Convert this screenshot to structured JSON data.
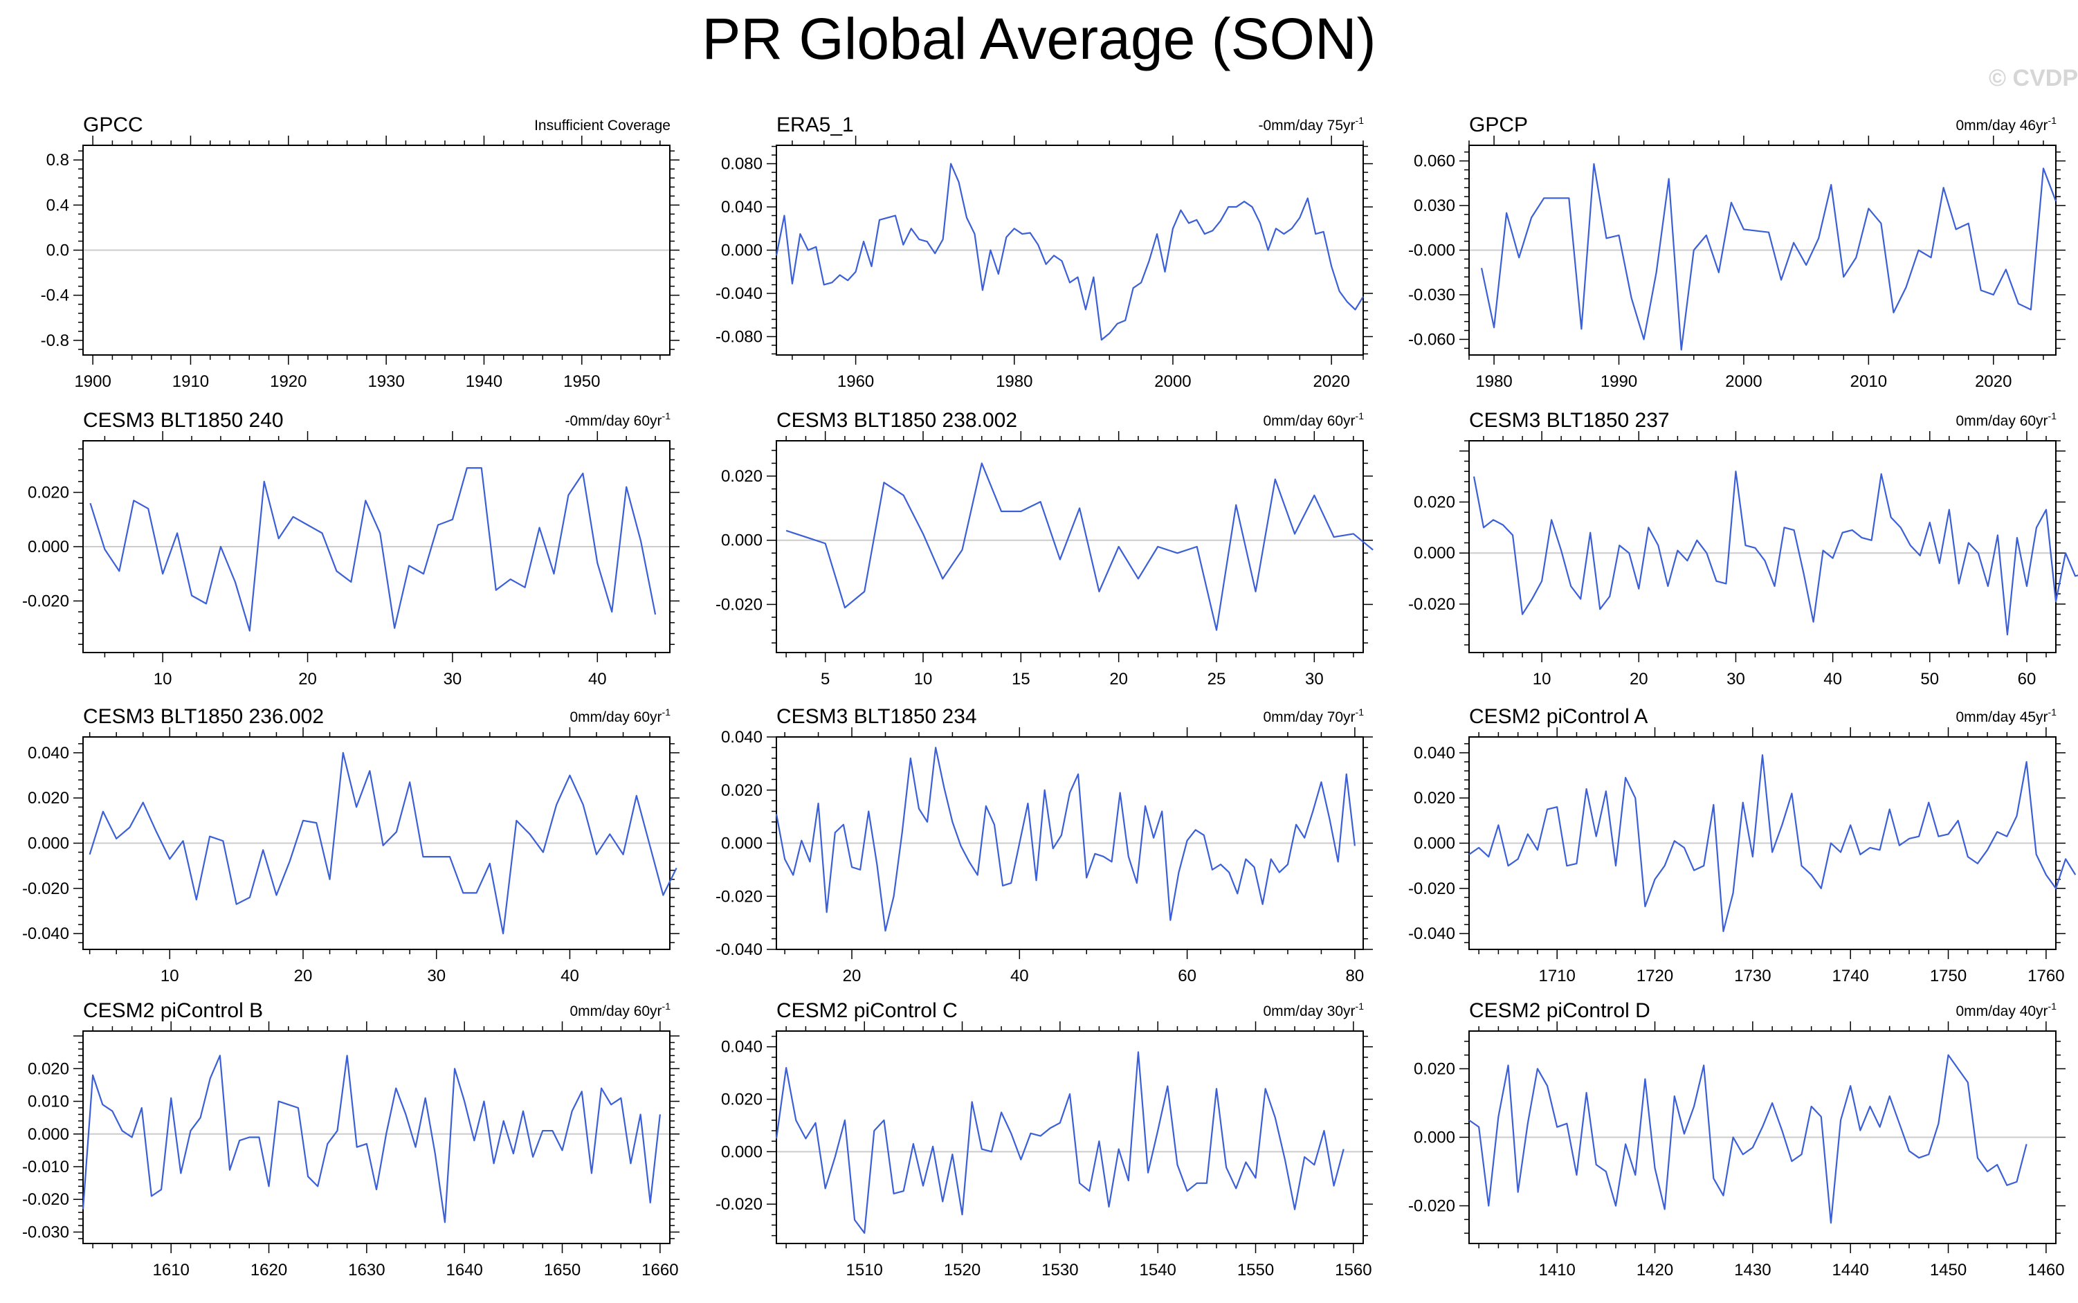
{
  "title": "PR Global Average (SON)",
  "watermark": "© CVDP",
  "colors": {
    "line": "#3b5fd6",
    "zero": "#cccccc",
    "axis": "#000000",
    "text": "#000000"
  },
  "chart_data": [
    {
      "type": "line",
      "title": "GPCC",
      "subtitle": "Insufficient Coverage",
      "xlim": [
        1899,
        1959
      ],
      "ylim": [
        -0.93,
        0.93
      ],
      "xticks": [
        1900,
        1910,
        1920,
        1930,
        1940,
        1950
      ],
      "yticks": [
        0.8,
        0.4,
        0.0,
        -0.4,
        -0.8
      ],
      "ytick_labels": [
        "0.8",
        "0.4",
        "0.0",
        "-0.4",
        "-0.8"
      ],
      "x_start": 1900,
      "values": []
    },
    {
      "type": "line",
      "title": "ERA5_1",
      "subtitle": "-0mm/day 75yr",
      "subtitle_sup": "-1",
      "xlim": [
        1950,
        2024
      ],
      "ylim": [
        -0.097,
        0.097
      ],
      "xticks": [
        1960,
        1980,
        2000,
        2020
      ],
      "yticks": [
        0.08,
        0.04,
        0.0,
        -0.04,
        -0.08
      ],
      "ytick_labels": [
        "0.080",
        "0.040",
        "0.000",
        "-0.040",
        "-0.080"
      ],
      "x_start": 1950,
      "values": [
        -0.005,
        0.032,
        -0.031,
        0.015,
        0.0,
        0.003,
        -0.032,
        -0.03,
        -0.023,
        -0.028,
        -0.02,
        0.008,
        -0.015,
        0.028,
        0.03,
        0.032,
        0.005,
        0.02,
        0.01,
        0.008,
        -0.003,
        0.01,
        0.08,
        0.063,
        0.03,
        0.015,
        -0.037,
        0.0,
        -0.022,
        0.012,
        0.02,
        0.015,
        0.016,
        0.005,
        -0.013,
        -0.005,
        -0.01,
        -0.03,
        -0.025,
        -0.055,
        -0.025,
        -0.083,
        -0.077,
        -0.068,
        -0.065,
        -0.035,
        -0.03,
        -0.01,
        0.015,
        -0.02,
        0.02,
        0.037,
        0.025,
        0.028,
        0.015,
        0.018,
        0.027,
        0.04,
        0.04,
        0.045,
        0.04,
        0.025,
        0.0,
        0.02,
        0.015,
        0.02,
        0.03,
        0.048,
        0.015,
        0.017,
        -0.015,
        -0.038,
        -0.048,
        -0.055,
        -0.043
      ]
    },
    {
      "type": "line",
      "title": "GPCP",
      "subtitle": "0mm/day 46yr",
      "subtitle_sup": "-1",
      "xlim": [
        1978,
        2025
      ],
      "ylim": [
        -0.0705,
        0.0705
      ],
      "xticks": [
        1980,
        1990,
        2000,
        2010,
        2020
      ],
      "yticks": [
        0.06,
        0.03,
        0.0,
        -0.03,
        -0.06
      ],
      "ytick_labels": [
        "0.060",
        "0.030",
        "-0.000",
        "-0.030",
        "-0.060"
      ],
      "x_start": 1979,
      "values": [
        -0.012,
        -0.052,
        0.025,
        -0.005,
        0.022,
        0.035,
        0.035,
        0.035,
        -0.053,
        0.058,
        0.008,
        0.01,
        -0.032,
        -0.06,
        -0.015,
        0.048,
        -0.067,
        -0.0,
        0.01,
        -0.015,
        0.032,
        0.014,
        0.013,
        0.012,
        -0.02,
        0.005,
        -0.01,
        0.008,
        0.044,
        -0.018,
        -0.005,
        0.028,
        0.018,
        -0.042,
        -0.025,
        0.0,
        -0.005,
        0.042,
        0.014,
        0.018,
        -0.027,
        -0.03,
        -0.013,
        -0.036,
        -0.04,
        0.055,
        0.033
      ]
    },
    {
      "type": "line",
      "title": "CESM3 BLT1850 240",
      "subtitle": "-0mm/day 60yr",
      "subtitle_sup": "-1",
      "xlim": [
        4.5,
        45
      ],
      "ylim": [
        -0.039,
        0.039
      ],
      "xticks": [
        10,
        20,
        30,
        40
      ],
      "yticks": [
        0.02,
        0.0,
        -0.02
      ],
      "ytick_labels": [
        "0.020",
        "0.000",
        "-0.020"
      ],
      "x_start": 5,
      "values": [
        0.016,
        -0.001,
        -0.009,
        0.017,
        0.014,
        -0.01,
        0.005,
        -0.018,
        -0.021,
        0.0,
        -0.013,
        -0.031,
        0.024,
        0.003,
        0.011,
        0.008,
        0.005,
        -0.009,
        -0.013,
        0.017,
        0.005,
        -0.03,
        -0.007,
        -0.01,
        0.008,
        0.01,
        0.029,
        0.029,
        -0.016,
        -0.012,
        -0.015,
        0.007,
        -0.01,
        0.019,
        0.027,
        -0.006,
        -0.024,
        0.022,
        0.002,
        -0.025
      ]
    },
    {
      "type": "line",
      "title": "CESM3 BLT1850 238.002",
      "subtitle": "0mm/day 60yr",
      "subtitle_sup": "-1",
      "xlim": [
        2.5,
        32.5
      ],
      "ylim": [
        -0.035,
        0.031
      ],
      "xticks": [
        5,
        10,
        15,
        20,
        25,
        30
      ],
      "yticks": [
        0.02,
        0.0,
        -0.02
      ],
      "ytick_labels": [
        "0.020",
        "0.000",
        "-0.020"
      ],
      "x_start": 3,
      "values": [
        0.003,
        0.001,
        -0.001,
        -0.021,
        -0.016,
        0.018,
        0.014,
        0.002,
        -0.012,
        -0.003,
        0.024,
        0.009,
        0.009,
        0.012,
        -0.006,
        0.01,
        -0.016,
        -0.002,
        -0.012,
        -0.002,
        -0.004,
        -0.002,
        -0.028,
        0.011,
        -0.016,
        0.019,
        0.002,
        0.014,
        0.001,
        0.002,
        -0.003
      ]
    },
    {
      "type": "line",
      "title": "CESM3 BLT1850 237",
      "subtitle": "0mm/day 60yr",
      "subtitle_sup": "-1",
      "xlim": [
        2.5,
        63
      ],
      "ylim": [
        -0.039,
        0.044
      ],
      "xticks": [
        10,
        20,
        30,
        40,
        50,
        60
      ],
      "yticks": [
        0.02,
        0.0,
        -0.02
      ],
      "ytick_labels": [
        "0.020",
        "0.000",
        "-0.020"
      ],
      "x_start": 3,
      "values": [
        0.03,
        0.01,
        0.013,
        0.011,
        0.007,
        -0.024,
        -0.018,
        -0.011,
        0.013,
        0.001,
        -0.013,
        -0.018,
        0.008,
        -0.022,
        -0.017,
        0.003,
        0.0,
        -0.014,
        0.01,
        0.003,
        -0.013,
        0.001,
        -0.003,
        0.005,
        0.0,
        -0.011,
        -0.012,
        0.032,
        0.003,
        0.002,
        -0.003,
        -0.013,
        0.01,
        0.009,
        -0.008,
        -0.027,
        0.001,
        -0.002,
        0.008,
        0.009,
        0.006,
        0.005,
        0.031,
        0.014,
        0.01,
        0.003,
        -0.001,
        0.012,
        -0.004,
        0.017,
        -0.012,
        0.004,
        0.0,
        -0.013,
        0.007,
        -0.032,
        0.006,
        -0.013,
        0.01,
        0.017,
        -0.019,
        0.0,
        -0.009,
        -0.008
      ]
    },
    {
      "type": "line",
      "title": "CESM3 BLT1850 236.002",
      "subtitle": "0mm/day 60yr",
      "subtitle_sup": "-1",
      "xlim": [
        3.5,
        47.5
      ],
      "ylim": [
        -0.047,
        0.047
      ],
      "xticks": [
        10,
        20,
        30,
        40
      ],
      "yticks": [
        0.04,
        0.02,
        0.0,
        -0.02,
        -0.04
      ],
      "ytick_labels": [
        "0.040",
        "0.020",
        "0.000",
        "-0.020",
        "-0.040"
      ],
      "x_start": 4,
      "values": [
        -0.005,
        0.014,
        0.002,
        0.007,
        0.018,
        0.005,
        -0.007,
        0.001,
        -0.025,
        0.003,
        0.001,
        -0.027,
        -0.024,
        -0.003,
        -0.023,
        -0.008,
        0.01,
        0.009,
        -0.016,
        0.04,
        0.016,
        0.032,
        -0.001,
        0.005,
        0.027,
        -0.006,
        -0.006,
        -0.006,
        -0.022,
        -0.022,
        -0.009,
        -0.04,
        0.01,
        0.004,
        -0.004,
        0.017,
        0.03,
        0.017,
        -0.005,
        0.004,
        -0.005,
        0.021,
        -0.001,
        -0.023,
        -0.011
      ]
    },
    {
      "type": "line",
      "title": "CESM3 BLT1850 234",
      "subtitle": "0mm/day 70yr",
      "subtitle_sup": "-1",
      "xlim": [
        11,
        81
      ],
      "ylim": [
        -0.04,
        0.04
      ],
      "xticks": [
        20,
        40,
        60,
        80
      ],
      "yticks": [
        0.04,
        0.02,
        0.0,
        -0.02,
        -0.04
      ],
      "ytick_labels": [
        "0.040",
        "0.020",
        "0.000",
        "-0.020",
        "-0.040"
      ],
      "x_start": 11,
      "values": [
        0.011,
        -0.006,
        -0.012,
        0.001,
        -0.007,
        0.015,
        -0.026,
        0.004,
        0.007,
        -0.009,
        -0.01,
        0.012,
        -0.008,
        -0.033,
        -0.02,
        0.004,
        0.032,
        0.013,
        0.008,
        0.036,
        0.021,
        0.008,
        -0.001,
        -0.007,
        -0.012,
        0.014,
        0.007,
        -0.016,
        -0.015,
        0.0,
        0.015,
        -0.014,
        0.02,
        -0.002,
        0.003,
        0.019,
        0.026,
        -0.013,
        -0.004,
        -0.005,
        -0.007,
        0.019,
        -0.005,
        -0.015,
        0.014,
        0.002,
        0.012,
        -0.029,
        -0.011,
        0.001,
        0.005,
        0.003,
        -0.01,
        -0.008,
        -0.011,
        -0.019,
        -0.006,
        -0.009,
        -0.023,
        -0.006,
        -0.011,
        -0.008,
        0.007,
        0.002,
        0.012,
        0.023,
        0.009,
        -0.007,
        0.026,
        -0.001
      ]
    },
    {
      "type": "line",
      "title": "CESM2 piControl A",
      "subtitle": "0mm/day 45yr",
      "subtitle_sup": "-1",
      "xlim": [
        1701,
        1761
      ],
      "ylim": [
        -0.047,
        0.047
      ],
      "xticks": [
        1710,
        1720,
        1730,
        1740,
        1750,
        1760
      ],
      "yticks": [
        0.04,
        0.02,
        0.0,
        -0.02,
        -0.04
      ],
      "ytick_labels": [
        "0.040",
        "0.020",
        "0.000",
        "-0.020",
        "-0.040"
      ],
      "x_start": 1701,
      "values": [
        -0.005,
        -0.002,
        -0.006,
        0.008,
        -0.01,
        -0.007,
        0.004,
        -0.003,
        0.015,
        0.016,
        -0.01,
        -0.009,
        0.024,
        0.003,
        0.023,
        -0.01,
        0.029,
        0.02,
        -0.028,
        -0.016,
        -0.01,
        0.001,
        -0.002,
        -0.012,
        -0.01,
        0.017,
        -0.039,
        -0.022,
        0.018,
        -0.006,
        0.039,
        -0.004,
        0.008,
        0.022,
        -0.01,
        -0.014,
        -0.02,
        0.0,
        -0.004,
        0.008,
        -0.005,
        -0.002,
        -0.003,
        0.015,
        -0.001,
        0.002,
        0.003,
        0.018,
        0.003,
        0.004,
        0.01,
        -0.006,
        -0.009,
        -0.003,
        0.005,
        0.003,
        0.012,
        0.036,
        -0.005,
        -0.014,
        -0.02,
        -0.007,
        -0.014
      ]
    },
    {
      "type": "line",
      "title": "CESM2 piControl B",
      "subtitle": "0mm/day 60yr",
      "subtitle_sup": "-1",
      "xlim": [
        1601,
        1661
      ],
      "ylim": [
        -0.0335,
        0.0315
      ],
      "xticks": [
        1610,
        1620,
        1630,
        1640,
        1650,
        1660
      ],
      "yticks": [
        0.02,
        0.01,
        0.0,
        -0.01,
        -0.02,
        -0.03
      ],
      "ytick_labels": [
        "0.020",
        "0.010",
        "0.000",
        "-0.010",
        "-0.020",
        "-0.030"
      ],
      "x_start": 1601,
      "values": [
        -0.023,
        0.018,
        0.009,
        0.007,
        0.001,
        -0.001,
        0.008,
        -0.019,
        -0.017,
        0.011,
        -0.012,
        0.001,
        0.005,
        0.017,
        0.024,
        -0.011,
        -0.002,
        -0.001,
        -0.001,
        -0.016,
        0.01,
        0.009,
        0.008,
        -0.013,
        -0.016,
        -0.003,
        0.001,
        0.024,
        -0.004,
        -0.003,
        -0.017,
        0.0,
        0.014,
        0.006,
        -0.004,
        0.011,
        -0.006,
        -0.027,
        0.02,
        0.01,
        -0.002,
        0.01,
        -0.009,
        0.004,
        -0.006,
        0.007,
        -0.007,
        0.001,
        0.001,
        -0.005,
        0.007,
        0.013,
        -0.012,
        0.014,
        0.009,
        0.011,
        -0.009,
        0.006,
        -0.021,
        0.006
      ]
    },
    {
      "type": "line",
      "title": "CESM2 piControl C",
      "subtitle": "0mm/day 30yr",
      "subtitle_sup": "-1",
      "xlim": [
        1501,
        1561
      ],
      "ylim": [
        -0.035,
        0.046
      ],
      "xticks": [
        1510,
        1520,
        1530,
        1540,
        1550,
        1560
      ],
      "yticks": [
        0.04,
        0.02,
        0.0,
        -0.02
      ],
      "ytick_labels": [
        "0.040",
        "0.020",
        "0.000",
        "-0.020"
      ],
      "x_start": 1501,
      "values": [
        0.005,
        0.032,
        0.012,
        0.005,
        0.011,
        -0.014,
        -0.002,
        0.012,
        -0.026,
        -0.031,
        0.008,
        0.012,
        -0.016,
        -0.015,
        0.003,
        -0.013,
        0.002,
        -0.019,
        -0.001,
        -0.024,
        0.019,
        0.001,
        0.0,
        0.015,
        0.007,
        -0.003,
        0.007,
        0.006,
        0.009,
        0.011,
        0.022,
        -0.012,
        -0.015,
        0.004,
        -0.021,
        0.001,
        -0.011,
        0.038,
        -0.008,
        0.008,
        0.025,
        -0.005,
        -0.015,
        -0.012,
        -0.012,
        0.024,
        -0.006,
        -0.014,
        -0.004,
        -0.01,
        0.024,
        0.013,
        -0.003,
        -0.022,
        -0.002,
        -0.005,
        0.008,
        -0.013,
        0.001
      ]
    },
    {
      "type": "line",
      "title": "CESM2 piControl D",
      "subtitle": "0mm/day 40yr",
      "subtitle_sup": "-1",
      "xlim": [
        1401,
        1461
      ],
      "ylim": [
        -0.031,
        0.031
      ],
      "xticks": [
        1410,
        1420,
        1430,
        1440,
        1450,
        1460
      ],
      "yticks": [
        0.02,
        0.0,
        -0.02
      ],
      "ytick_labels": [
        "0.020",
        "0.000",
        "-0.020"
      ],
      "x_start": 1401,
      "values": [
        0.005,
        0.003,
        -0.02,
        0.006,
        0.021,
        -0.016,
        0.004,
        0.02,
        0.015,
        0.003,
        0.004,
        -0.011,
        0.013,
        -0.008,
        -0.01,
        -0.02,
        -0.002,
        -0.011,
        0.017,
        -0.009,
        -0.021,
        0.012,
        0.001,
        0.009,
        0.021,
        -0.012,
        -0.017,
        0.0,
        -0.005,
        -0.003,
        0.003,
        0.01,
        0.002,
        -0.007,
        -0.005,
        0.009,
        0.006,
        -0.025,
        0.005,
        0.015,
        0.002,
        0.009,
        0.003,
        0.012,
        0.004,
        -0.004,
        -0.006,
        -0.005,
        0.004,
        0.024,
        0.02,
        0.016,
        -0.006,
        -0.01,
        -0.008,
        -0.014,
        -0.013,
        -0.002
      ]
    }
  ]
}
